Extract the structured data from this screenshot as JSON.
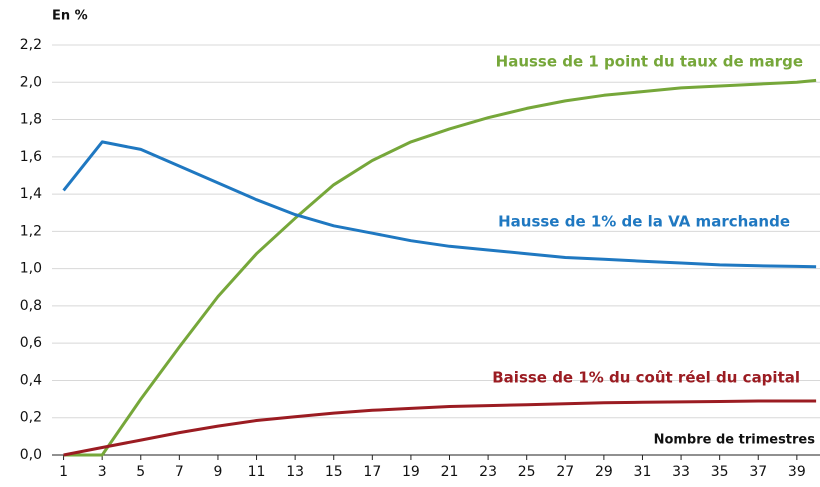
{
  "chart_data": {
    "type": "line",
    "y_label": "En %",
    "x_label": "Nombre de trimestres",
    "x": [
      1,
      3,
      5,
      7,
      9,
      11,
      13,
      15,
      17,
      19,
      21,
      23,
      25,
      27,
      29,
      31,
      33,
      35,
      37,
      39,
      40
    ],
    "series": [
      {
        "name": "Hausse de 1 point du taux de marge",
        "color": "#76a73a",
        "values": [
          0,
          0,
          0.3,
          0.58,
          0.85,
          1.08,
          1.27,
          1.45,
          1.58,
          1.68,
          1.75,
          1.81,
          1.86,
          1.9,
          1.93,
          1.95,
          1.97,
          1.98,
          1.99,
          2.0,
          2.01
        ]
      },
      {
        "name": "Hausse de 1% de la VA marchande",
        "color": "#1f78c1",
        "values": [
          1.42,
          1.68,
          1.64,
          1.55,
          1.46,
          1.37,
          1.29,
          1.23,
          1.19,
          1.15,
          1.12,
          1.1,
          1.08,
          1.06,
          1.05,
          1.04,
          1.03,
          1.02,
          1.015,
          1.012,
          1.01
        ]
      },
      {
        "name": "Baisse de 1% du coût réel du capital",
        "color": "#9b1c22",
        "values": [
          0,
          0.04,
          0.08,
          0.12,
          0.155,
          0.185,
          0.205,
          0.225,
          0.24,
          0.25,
          0.26,
          0.265,
          0.27,
          0.275,
          0.28,
          0.283,
          0.285,
          0.287,
          0.29,
          0.29,
          0.29
        ]
      }
    ],
    "xlim": [
      0.4,
      40.2
    ],
    "xticks": [
      1,
      3,
      5,
      7,
      9,
      11,
      13,
      15,
      17,
      19,
      21,
      23,
      25,
      27,
      29,
      31,
      33,
      35,
      37,
      39
    ],
    "ylim": [
      0,
      2.2
    ],
    "yticks": [
      {
        "value": 0,
        "label": "0,0"
      },
      {
        "value": 0.2,
        "label": "0,2"
      },
      {
        "value": 0.4,
        "label": "0,4"
      },
      {
        "value": 0.6,
        "label": "0,6"
      },
      {
        "value": 0.8,
        "label": "0,8"
      },
      {
        "value": 1.0,
        "label": "1,0"
      },
      {
        "value": 1.2,
        "label": "1,2"
      },
      {
        "value": 1.4,
        "label": "1,4"
      },
      {
        "value": 1.6,
        "label": "1,6"
      },
      {
        "value": 1.8,
        "label": "1,8"
      },
      {
        "value": 2.0,
        "label": "2,0"
      },
      {
        "value": 2.2,
        "label": "2,2"
      }
    ],
    "grid": true
  }
}
